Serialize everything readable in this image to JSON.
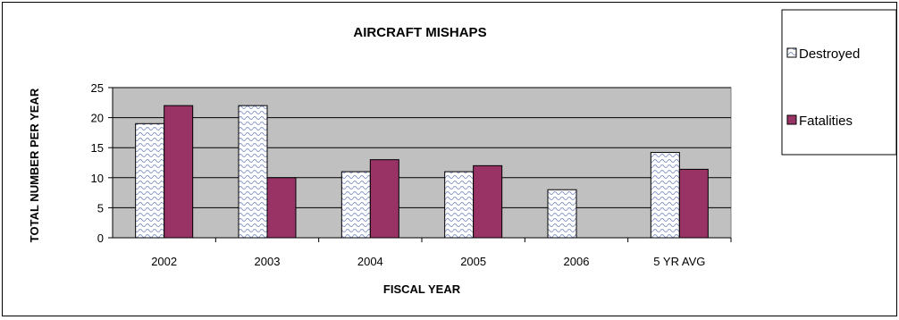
{
  "chart_data": {
    "type": "bar",
    "title": "AIRCRAFT MISHAPS",
    "xlabel": "FISCAL YEAR",
    "ylabel": "TOTAL NUMBER PER YEAR",
    "categories": [
      "2002",
      "2003",
      "2004",
      "2005",
      "2006",
      "5 YR AVG"
    ],
    "series": [
      {
        "name": "Destroyed",
        "values": [
          19,
          22,
          11,
          11,
          8,
          14.2
        ],
        "color": "#ffffff",
        "pattern": "blue-wave"
      },
      {
        "name": "Fatalities",
        "values": [
          22,
          10,
          13,
          12,
          0,
          11.4
        ],
        "color": "#993366"
      }
    ],
    "ylim": [
      0,
      25
    ],
    "yticks": [
      0,
      5,
      10,
      15,
      20,
      25
    ],
    "grid": true,
    "plot_background": "#c0c0c0",
    "legend_position": "right"
  }
}
